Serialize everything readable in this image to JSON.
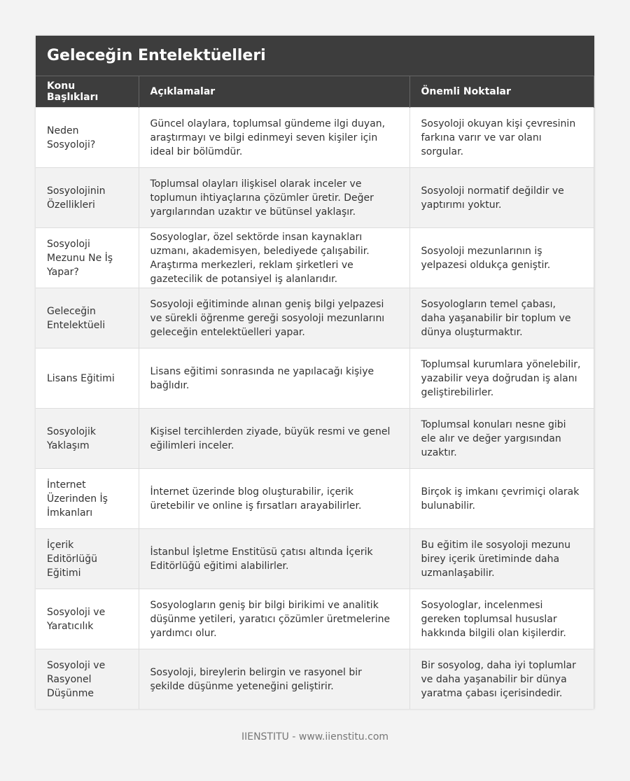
{
  "title": "Geleceğin Entelektüelleri",
  "table": {
    "header": [
      "Konu Başlıkları",
      "Açıklamalar",
      "Önemli Noktalar"
    ],
    "rows": [
      [
        "Neden Sosyoloji?",
        "Güncel olaylara, toplumsal gündeme ilgi duyan, araştırmayı ve bilgi edinmeyi seven kişiler için ideal bir bölümdür.",
        "Sosyoloji okuyan kişi çevresinin farkına varır ve var olanı sorgular."
      ],
      [
        "Sosyolojinin Özellikleri",
        "Toplumsal olayları ilişkisel olarak inceler ve toplumun ihtiyaçlarına çözümler üretir. Değer yargılarından uzaktır ve bütünsel yaklaşır.",
        "Sosyoloji normatif değildir ve yaptırımı yoktur."
      ],
      [
        "Sosyoloji Mezunu Ne İş Yapar?",
        "Sosyologlar, özel sektörde insan kaynakları uzmanı, akademisyen, belediyede çalışabilir. Araştırma merkezleri, reklam şirketleri ve gazetecilik de potansiyel iş alanlarıdır.",
        "Sosyoloji mezunlarının iş yelpazesi oldukça geniştir."
      ],
      [
        "Geleceğin Entelektüeli",
        "Sosyoloji eğitiminde alınan geniş bilgi yelpazesi ve sürekli öğrenme gereği sosyoloji mezunlarını geleceğin entelektüelleri yapar.",
        "Sosyologların temel çabası, daha yaşanabilir bir toplum ve dünya oluşturmaktır."
      ],
      [
        "Lisans Eğitimi",
        "Lisans eğitimi sonrasında ne yapılacağı kişiye bağlıdır.",
        "Toplumsal kurumlara yönelebilir, yazabilir veya doğrudan iş alanı geliştirebilirler."
      ],
      [
        "Sosyolojik Yaklaşım",
        "Kişisel tercihlerden ziyade, büyük resmi ve genel eğilimleri inceler.",
        "Toplumsal konuları nesne gibi ele alır ve değer yargısından uzaktır."
      ],
      [
        "İnternet Üzerinden İş İmkanları",
        "İnternet üzerinde blog oluşturabilir, içerik üretebilir ve online iş fırsatları arayabilirler.",
        "Birçok iş imkanı çevrimiçi olarak bulunabilir."
      ],
      [
        "İçerik Editörlüğü Eğitimi",
        "İstanbul İşletme Enstitüsü çatısı altında İçerik Editörlüğü eğitimi alabilirler.",
        "Bu eğitim ile sosyoloji mezunu birey içerik üretiminde daha uzmanlaşabilir."
      ],
      [
        "Sosyoloji ve Yaratıcılık",
        "Sosyologların geniş bir bilgi birikimi ve analitik düşünme yetileri, yaratıcı çözümler üretmelerine yardımcı olur.",
        "Sosyologlar, incelenmesi gereken toplumsal hususlar hakkında bilgili olan kişilerdir."
      ],
      [
        "Sosyoloji ve Rasyonel Düşünme",
        "Sosyoloji, bireylerin belirgin ve rasyonel bir şekilde düşünme yeteneğini geliştirir.",
        "Bir sosyolog, daha iyi toplumlar ve daha yaşanabilir bir dünya yaratma çabası içerisindedir."
      ]
    ]
  },
  "footer": "IIENSTITU - www.iienstitu.com"
}
